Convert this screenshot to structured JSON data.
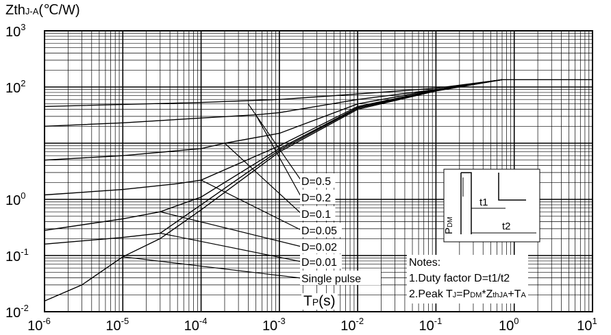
{
  "chart_data": {
    "type": "line",
    "title": "",
    "ylabel": {
      "main": "Zth",
      "sub": "J-A",
      "unit": "(℃/W)"
    },
    "xlabel": {
      "main": "T",
      "sub": "P",
      "unit": "(s)"
    },
    "xscale": "log",
    "yscale": "log",
    "xlim": [
      1e-06,
      10
    ],
    "ylim": [
      0.01,
      1000
    ],
    "x_ticks": [
      {
        "base": "10",
        "exp": "-6"
      },
      {
        "base": "10",
        "exp": "-5"
      },
      {
        "base": "10",
        "exp": "-4"
      },
      {
        "base": "10",
        "exp": "-3"
      },
      {
        "base": "10",
        "exp": "-2"
      },
      {
        "base": "10",
        "exp": "-1"
      },
      {
        "base": "10",
        "exp": "0"
      },
      {
        "base": "10",
        "exp": "1"
      }
    ],
    "y_ticks": [
      {
        "base": "10",
        "exp": "-2"
      },
      {
        "base": "10",
        "exp": "-1"
      },
      {
        "base": "10",
        "exp": "0"
      },
      {
        "base": "10",
        "exp": "2"
      },
      {
        "base": "10",
        "exp": "3"
      }
    ],
    "grid": true,
    "series": [
      {
        "name": "D=0.5",
        "points": [
          [
            1e-06,
            45
          ],
          [
            0.0001,
            53
          ],
          [
            0.001,
            60
          ],
          [
            0.01,
            75
          ],
          [
            0.1,
            95
          ],
          [
            0.7,
            135
          ],
          [
            10,
            135
          ]
        ]
      },
      {
        "name": "D=0.2",
        "points": [
          [
            1e-06,
            20
          ],
          [
            1e-05,
            23
          ],
          [
            0.0001,
            28
          ],
          [
            0.0005,
            32
          ],
          [
            0.001,
            35
          ],
          [
            0.01,
            60
          ],
          [
            0.1,
            90
          ],
          [
            0.7,
            135
          ]
        ]
      },
      {
        "name": "D=0.1",
        "points": [
          [
            1e-06,
            5
          ],
          [
            1e-05,
            6
          ],
          [
            0.0001,
            8
          ],
          [
            0.0002,
            10
          ],
          [
            0.001,
            15
          ],
          [
            0.01,
            50
          ],
          [
            0.1,
            90
          ],
          [
            0.7,
            135
          ]
        ]
      },
      {
        "name": "D=0.05",
        "points": [
          [
            1e-06,
            1.2
          ],
          [
            1e-05,
            1.5
          ],
          [
            5e-05,
            1.9
          ],
          [
            0.0001,
            2.2
          ],
          [
            0.001,
            9
          ],
          [
            0.01,
            45
          ],
          [
            0.1,
            88
          ],
          [
            0.7,
            135
          ]
        ]
      },
      {
        "name": "D=0.02",
        "points": [
          [
            1e-06,
            0.28
          ],
          [
            1e-05,
            0.45
          ],
          [
            3e-05,
            0.6
          ],
          [
            0.0001,
            1.1
          ],
          [
            0.001,
            8
          ],
          [
            0.01,
            43
          ],
          [
            0.1,
            87
          ],
          [
            0.7,
            135
          ]
        ]
      },
      {
        "name": "D=0.01",
        "points": [
          [
            1e-06,
            0.16
          ],
          [
            1e-05,
            0.21
          ],
          [
            3e-05,
            0.25
          ],
          [
            0.0001,
            0.8
          ],
          [
            0.001,
            7.5
          ],
          [
            0.01,
            42
          ],
          [
            0.1,
            86
          ],
          [
            0.7,
            135
          ]
        ]
      },
      {
        "name": "Single pulse",
        "points": [
          [
            1e-06,
            0.0155
          ],
          [
            3e-06,
            0.03
          ],
          [
            1e-05,
            0.095
          ],
          [
            3e-05,
            0.2
          ],
          [
            0.0001,
            0.65
          ],
          [
            0.001,
            7
          ],
          [
            0.01,
            40
          ],
          [
            0.1,
            85
          ],
          [
            0.7,
            135
          ]
        ]
      }
    ],
    "labels": [
      {
        "text": "D=0.5",
        "line_from": [
          0.0004,
          50
        ]
      },
      {
        "text": "D=0.2",
        "line_from": [
          0.0005,
          32
        ]
      },
      {
        "text": "D=0.1",
        "line_from": [
          0.0002,
          10
        ]
      },
      {
        "text": "D=0.05",
        "line_from": [
          0.0001,
          2.2
        ]
      },
      {
        "text": "D=0.02",
        "line_from": [
          3e-05,
          0.6
        ]
      },
      {
        "text": "D=0.01",
        "line_from": [
          3e-05,
          0.25
        ]
      },
      {
        "text": "Single pulse",
        "line_from": [
          1e-05,
          0.095
        ]
      }
    ],
    "inset": {
      "pdm": "P",
      "pdm_sub": "DM",
      "t1": "t1",
      "t2": "t2"
    },
    "notes": {
      "title": "Notes:",
      "line1": "1.Duty factor D=t1/t2",
      "line2_a": "2.Peak T",
      "line2_a_sub": "J",
      "line2_b": "=P",
      "line2_b_sub": "DM",
      "line2_c": "*Z",
      "line2_c_sub": "thJA",
      "line2_d": "+T",
      "line2_d_sub": "A"
    },
    "colors": {
      "line": "#000000",
      "grid": "#000000",
      "background": "#ffffff"
    }
  }
}
